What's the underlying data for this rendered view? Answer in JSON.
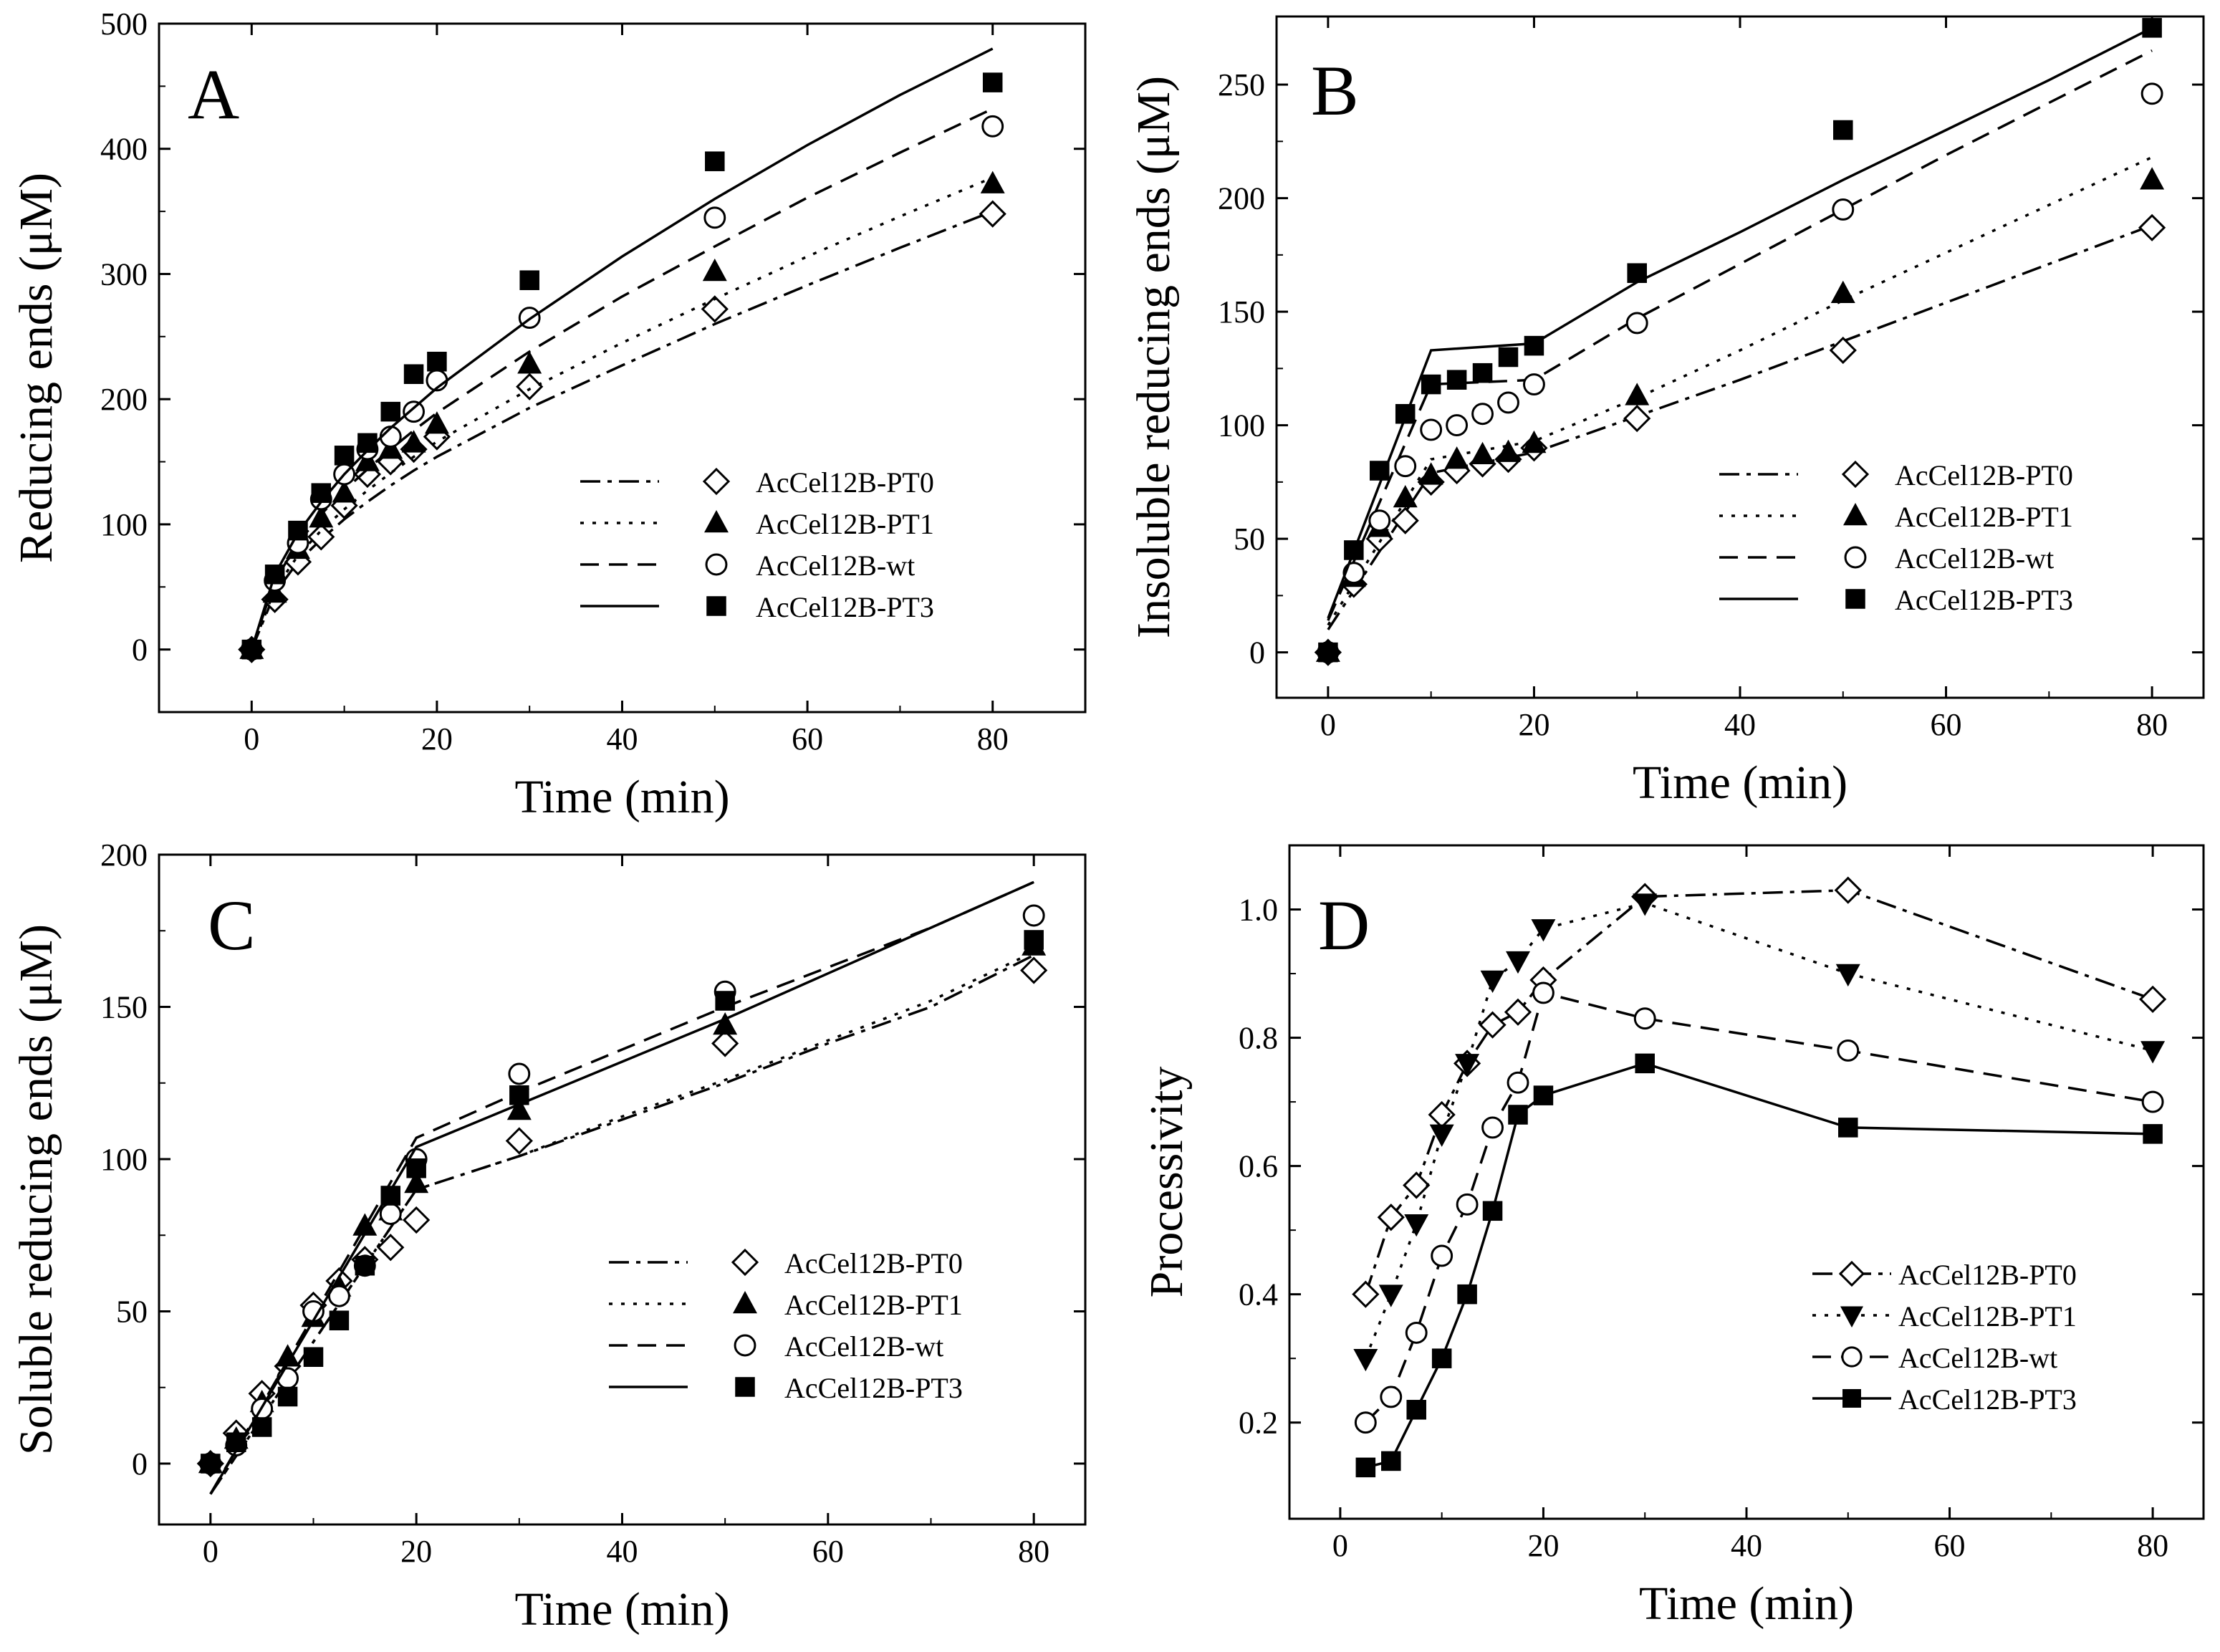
{
  "chart_data": [
    {
      "panel": "A",
      "type": "scatter",
      "xlabel": "Time (min)",
      "ylabel": "Reducing ends (μM)",
      "xlim": [
        -10,
        90
      ],
      "ylim": [
        -50,
        500
      ],
      "xticks": [
        0,
        20,
        40,
        60,
        80
      ],
      "yticks": [
        0,
        100,
        200,
        300,
        400,
        500
      ],
      "legend_position": "right-middle",
      "series": [
        {
          "name": "AcCel12B-PT0",
          "marker": "diamond-open",
          "line": "dashdot",
          "x": [
            0,
            2.5,
            5,
            7.5,
            10,
            12.5,
            15,
            17.5,
            20,
            30,
            50,
            80
          ],
          "y": [
            0,
            40,
            70,
            90,
            115,
            140,
            150,
            160,
            170,
            210,
            272,
            348
          ],
          "fit": [
            [
              0,
              0
            ],
            [
              2.5,
              45
            ],
            [
              5,
              70
            ],
            [
              7.5,
              88
            ],
            [
              10,
              104
            ],
            [
              12.5,
              118
            ],
            [
              15,
              131
            ],
            [
              17.5,
              143
            ],
            [
              20,
              154
            ],
            [
              30,
              193
            ],
            [
              40,
              227
            ],
            [
              50,
              260
            ],
            [
              60,
              291
            ],
            [
              70,
              321
            ],
            [
              80,
              350
            ]
          ]
        },
        {
          "name": "AcCel12B-PT1",
          "marker": "triangle-filled",
          "line": "dotted",
          "x": [
            0,
            2.5,
            5,
            7.5,
            10,
            12.5,
            15,
            17.5,
            20,
            30,
            50,
            80
          ],
          "y": [
            0,
            45,
            80,
            105,
            125,
            150,
            160,
            165,
            180,
            228,
            302,
            372
          ],
          "fit": [
            [
              0,
              0
            ],
            [
              2.5,
              48
            ],
            [
              5,
              75
            ],
            [
              7.5,
              95
            ],
            [
              10,
              112
            ],
            [
              12.5,
              127
            ],
            [
              15,
              141
            ],
            [
              17.5,
              154
            ],
            [
              20,
              166
            ],
            [
              30,
              208
            ],
            [
              40,
              245
            ],
            [
              50,
              280
            ],
            [
              60,
              314
            ],
            [
              70,
              346
            ],
            [
              80,
              377
            ]
          ]
        },
        {
          "name": "AcCel12B-wt",
          "marker": "circle-open",
          "line": "dashed",
          "x": [
            0,
            2.5,
            5,
            7.5,
            10,
            12.5,
            15,
            17.5,
            20,
            30,
            50,
            80
          ],
          "y": [
            0,
            55,
            85,
            120,
            140,
            160,
            170,
            190,
            215,
            265,
            345,
            418
          ],
          "fit": [
            [
              0,
              0
            ],
            [
              2.5,
              55
            ],
            [
              5,
              85
            ],
            [
              7.5,
              108
            ],
            [
              10,
              127
            ],
            [
              12.5,
              144
            ],
            [
              15,
              160
            ],
            [
              17.5,
              175
            ],
            [
              20,
              189
            ],
            [
              30,
              238
            ],
            [
              40,
              282
            ],
            [
              50,
              322
            ],
            [
              60,
              361
            ],
            [
              70,
              397
            ],
            [
              80,
              432
            ]
          ]
        },
        {
          "name": "AcCel12B-PT3",
          "marker": "square-filled",
          "line": "solid",
          "x": [
            0,
            2.5,
            5,
            7.5,
            10,
            12.5,
            15,
            17.5,
            20,
            30,
            50,
            80
          ],
          "y": [
            0,
            60,
            95,
            125,
            155,
            165,
            190,
            220,
            230,
            295,
            390,
            453
          ],
          "fit": [
            [
              0,
              0
            ],
            [
              2.5,
              60
            ],
            [
              5,
              93
            ],
            [
              7.5,
              118
            ],
            [
              10,
              140
            ],
            [
              12.5,
              159
            ],
            [
              15,
              177
            ],
            [
              17.5,
              193
            ],
            [
              20,
              209
            ],
            [
              30,
              264
            ],
            [
              40,
              314
            ],
            [
              50,
              360
            ],
            [
              60,
              403
            ],
            [
              70,
              443
            ],
            [
              80,
              480
            ]
          ]
        }
      ]
    },
    {
      "panel": "B",
      "type": "scatter",
      "xlabel": "Time (min)",
      "ylabel": "Insoluble reducing ends (μM)",
      "xlim": [
        -5,
        85
      ],
      "ylim": [
        -20,
        280
      ],
      "xticks": [
        0,
        20,
        40,
        60,
        80
      ],
      "yticks": [
        0,
        50,
        100,
        150,
        200,
        250
      ],
      "legend_position": "right-middle",
      "series": [
        {
          "name": "AcCel12B-PT0",
          "marker": "diamond-open",
          "line": "dashdot",
          "x": [
            0,
            2.5,
            5,
            7.5,
            10,
            12.5,
            15,
            17.5,
            20,
            30,
            50,
            80
          ],
          "y": [
            0,
            30,
            50,
            58,
            75,
            80,
            83,
            85,
            90,
            103,
            133,
            187
          ],
          "fit": [
            [
              0,
              10
            ],
            [
              10,
              79
            ],
            [
              20,
              88
            ],
            [
              30,
              104
            ],
            [
              40,
              120
            ],
            [
              50,
              137
            ],
            [
              60,
              154
            ],
            [
              70,
              171
            ],
            [
              80,
              188
            ]
          ]
        },
        {
          "name": "AcCel12B-PT1",
          "marker": "triangle-filled",
          "line": "dotted",
          "x": [
            0,
            2.5,
            5,
            7.5,
            10,
            12.5,
            15,
            17.5,
            20,
            30,
            50,
            80
          ],
          "y": [
            0,
            33,
            55,
            68,
            78,
            85,
            87,
            88,
            92,
            113,
            158,
            208
          ],
          "fit": [
            [
              0,
              12
            ],
            [
              10,
              85
            ],
            [
              20,
              93
            ],
            [
              30,
              112
            ],
            [
              40,
              133
            ],
            [
              50,
              155
            ],
            [
              60,
              176
            ],
            [
              70,
              197
            ],
            [
              80,
              218
            ]
          ]
        },
        {
          "name": "AcCel12B-wt",
          "marker": "circle-open",
          "line": "dashed",
          "x": [
            0,
            2.5,
            5,
            7.5,
            10,
            12.5,
            15,
            17.5,
            20,
            30,
            50,
            80
          ],
          "y": [
            0,
            35,
            58,
            82,
            98,
            100,
            105,
            110,
            118,
            145,
            195,
            246
          ],
          "fit": [
            [
              0,
              14
            ],
            [
              10,
              118
            ],
            [
              20,
              120
            ],
            [
              30,
              147
            ],
            [
              40,
              171
            ],
            [
              50,
              195
            ],
            [
              60,
              219
            ],
            [
              70,
              242
            ],
            [
              80,
              265
            ]
          ]
        },
        {
          "name": "AcCel12B-PT3",
          "marker": "square-filled",
          "line": "solid",
          "x": [
            0,
            2.5,
            5,
            7.5,
            10,
            12.5,
            15,
            17.5,
            20,
            30,
            50,
            80
          ],
          "y": [
            0,
            45,
            80,
            105,
            118,
            120,
            123,
            130,
            135,
            167,
            230,
            275
          ],
          "fit": [
            [
              0,
              15
            ],
            [
              10,
              133
            ],
            [
              20,
              136
            ],
            [
              30,
              163
            ],
            [
              40,
              185
            ],
            [
              50,
              208
            ],
            [
              60,
              230
            ],
            [
              70,
              252
            ],
            [
              80,
              275
            ]
          ]
        }
      ]
    },
    {
      "panel": "C",
      "type": "scatter",
      "xlabel": "Time (min)",
      "ylabel": "Soluble reducing ends (μM)",
      "xlim": [
        -5,
        85
      ],
      "ylim": [
        -20,
        200
      ],
      "xticks": [
        0,
        20,
        40,
        60,
        80
      ],
      "yticks": [
        0,
        50,
        100,
        150,
        200
      ],
      "legend_position": "right-lower",
      "series": [
        {
          "name": "AcCel12B-PT0",
          "marker": "diamond-open",
          "line": "dashdot",
          "x": [
            0,
            2.5,
            5,
            7.5,
            10,
            12.5,
            15,
            17.5,
            20,
            30,
            50,
            80
          ],
          "y": [
            0,
            10,
            23,
            32,
            52,
            60,
            67,
            71,
            80,
            106,
            138,
            162
          ],
          "fit": [
            [
              0,
              -10
            ],
            [
              20,
              90
            ],
            [
              30,
              101
            ],
            [
              40,
              113
            ],
            [
              50,
              125
            ],
            [
              60,
              138
            ],
            [
              70,
              150
            ],
            [
              80,
              167
            ]
          ]
        },
        {
          "name": "AcCel12B-PT1",
          "marker": "triangle-filled",
          "line": "dotted",
          "x": [
            0,
            2.5,
            5,
            7.5,
            10,
            12.5,
            15,
            17.5,
            20,
            30,
            50,
            80
          ],
          "y": [
            0,
            8,
            20,
            35,
            48,
            58,
            78,
            83,
            92,
            116,
            144,
            170
          ],
          "fit": [
            [
              0,
              -10
            ],
            [
              20,
              90
            ],
            [
              30,
              101
            ],
            [
              40,
              114
            ],
            [
              50,
              126
            ],
            [
              60,
              139
            ],
            [
              70,
              152
            ],
            [
              80,
              168
            ]
          ]
        },
        {
          "name": "AcCel12B-wt",
          "marker": "circle-open",
          "line": "dashed",
          "x": [
            0,
            2.5,
            5,
            7.5,
            10,
            12.5,
            15,
            17.5,
            20,
            30,
            50,
            80
          ],
          "y": [
            0,
            6,
            18,
            28,
            50,
            55,
            65,
            82,
            100,
            128,
            155,
            180
          ],
          "fit": [
            [
              0,
              -10
            ],
            [
              20,
              107
            ],
            [
              30,
              122
            ],
            [
              40,
              136
            ],
            [
              50,
              150
            ],
            [
              60,
              163
            ],
            [
              70,
              176
            ],
            [
              80,
              191
            ]
          ]
        },
        {
          "name": "AcCel12B-PT3",
          "marker": "square-filled",
          "line": "solid",
          "x": [
            0,
            2.5,
            5,
            7.5,
            10,
            12.5,
            15,
            17.5,
            20,
            30,
            50,
            80
          ],
          "y": [
            0,
            7,
            12,
            22,
            35,
            47,
            65,
            88,
            97,
            121,
            152,
            172
          ],
          "fit": [
            [
              0,
              -10
            ],
            [
              20,
              104
            ],
            [
              30,
              118
            ],
            [
              40,
              132
            ],
            [
              50,
              146
            ],
            [
              60,
              161
            ],
            [
              70,
              176
            ],
            [
              80,
              191
            ]
          ]
        }
      ]
    },
    {
      "panel": "D",
      "type": "line",
      "xlabel": "Time (min)",
      "ylabel": "Processivity",
      "xlim": [
        -5,
        85
      ],
      "ylim": [
        0.05,
        1.1
      ],
      "xticks": [
        0,
        20,
        40,
        60,
        80
      ],
      "yticks": [
        0.2,
        0.4,
        0.6,
        0.8,
        1.0
      ],
      "legend_position": "bottom-right",
      "series": [
        {
          "name": "AcCel12B-PT0",
          "marker": "diamond-open",
          "line": "dashdot",
          "x": [
            2.5,
            5,
            7.5,
            10,
            12.5,
            15,
            17.5,
            20,
            30,
            50,
            80
          ],
          "y": [
            0.4,
            0.52,
            0.57,
            0.68,
            0.76,
            0.82,
            0.84,
            0.89,
            1.02,
            1.03,
            0.86
          ]
        },
        {
          "name": "AcCel12B-PT1",
          "marker": "triangle-down-filled",
          "line": "dotted",
          "x": [
            2.5,
            5,
            7.5,
            10,
            12.5,
            15,
            17.5,
            20,
            30,
            50,
            80
          ],
          "y": [
            0.3,
            0.4,
            0.51,
            0.65,
            0.76,
            0.89,
            0.92,
            0.97,
            1.01,
            0.9,
            0.78
          ]
        },
        {
          "name": "AcCel12B-wt",
          "marker": "circle-open",
          "line": "dashed",
          "x": [
            2.5,
            5,
            7.5,
            10,
            12.5,
            15,
            17.5,
            20,
            30,
            50,
            80
          ],
          "y": [
            0.2,
            0.24,
            0.34,
            0.46,
            0.54,
            0.66,
            0.73,
            0.87,
            0.83,
            0.78,
            0.7
          ]
        },
        {
          "name": "AcCel12B-PT3",
          "marker": "square-filled",
          "line": "solid",
          "x": [
            2.5,
            5,
            7.5,
            10,
            12.5,
            15,
            17.5,
            20,
            30,
            50,
            80
          ],
          "y": [
            0.13,
            0.14,
            0.22,
            0.3,
            0.4,
            0.53,
            0.68,
            0.71,
            0.76,
            0.66,
            0.65
          ]
        }
      ]
    }
  ]
}
